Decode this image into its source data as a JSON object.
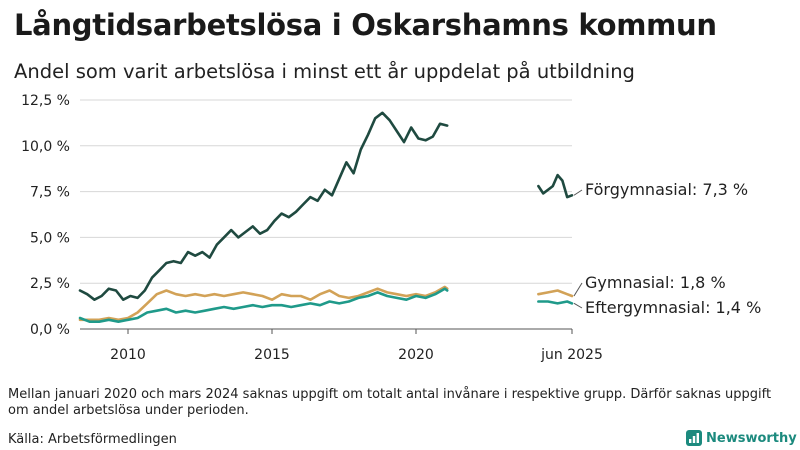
{
  "title": "Långtidsarbetslösa i Oskarshamns kommun",
  "subtitle": "Andel som varit arbetslösa i minst ett år uppdelat på utbildning",
  "note": "Mellan januari 2020 och mars 2024 saknas uppgift om totalt antal invånare i respektive grupp. Därför saknas uppgift om andel arbetslösa under perioden.",
  "source": "Källa: Arbetsförmedlingen",
  "brand": {
    "name": "Newsworthy",
    "icon": "newsworthy-logo-icon",
    "color": "#1c8a7e"
  },
  "chart_data": {
    "type": "line",
    "title": "Långtidsarbetslösa i Oskarshamns kommun",
    "subtitle": "Andel som varit arbetslösa i minst ett år uppdelat på utbildning",
    "xlabel": "",
    "ylabel": "",
    "x_range": [
      "2008-05",
      "2025-06"
    ],
    "ylim": [
      0,
      12.5
    ],
    "y_ticks": [
      0,
      2.5,
      5.0,
      7.5,
      10.0,
      12.5
    ],
    "y_tick_labels": [
      "0,0 %",
      "2,5 %",
      "5,0 %",
      "7,5 %",
      "10,0 %",
      "12,5 %"
    ],
    "x_ticks": [
      "2010-01",
      "2015-01",
      "2020-01",
      "2025-06"
    ],
    "x_tick_labels": [
      "2010",
      "2015",
      "2020",
      "jun 2025"
    ],
    "grid": "horizontal",
    "legend": "direct labels at right end",
    "series": [
      {
        "name": "Förgymnasial",
        "end_label": "Förgymnasial: 7,3 %",
        "color": "#1f4a40",
        "segments": [
          [
            [
              "2008-05",
              2.1
            ],
            [
              "2008-08",
              1.9
            ],
            [
              "2008-11",
              1.6
            ],
            [
              "2009-02",
              1.8
            ],
            [
              "2009-05",
              2.2
            ],
            [
              "2009-08",
              2.1
            ],
            [
              "2009-11",
              1.6
            ],
            [
              "2010-02",
              1.8
            ],
            [
              "2010-05",
              1.7
            ],
            [
              "2010-08",
              2.1
            ],
            [
              "2010-11",
              2.8
            ],
            [
              "2011-02",
              3.2
            ],
            [
              "2011-05",
              3.6
            ],
            [
              "2011-08",
              3.7
            ],
            [
              "2011-11",
              3.6
            ],
            [
              "2012-02",
              4.2
            ],
            [
              "2012-05",
              4.0
            ],
            [
              "2012-08",
              4.2
            ],
            [
              "2012-11",
              3.9
            ],
            [
              "2013-02",
              4.6
            ],
            [
              "2013-05",
              5.0
            ],
            [
              "2013-08",
              5.4
            ],
            [
              "2013-11",
              5.0
            ],
            [
              "2014-02",
              5.3
            ],
            [
              "2014-05",
              5.6
            ],
            [
              "2014-08",
              5.2
            ],
            [
              "2014-11",
              5.4
            ],
            [
              "2015-02",
              5.9
            ],
            [
              "2015-05",
              6.3
            ],
            [
              "2015-08",
              6.1
            ],
            [
              "2015-11",
              6.4
            ],
            [
              "2016-02",
              6.8
            ],
            [
              "2016-05",
              7.2
            ],
            [
              "2016-08",
              7.0
            ],
            [
              "2016-11",
              7.6
            ],
            [
              "2017-02",
              7.3
            ],
            [
              "2017-05",
              8.2
            ],
            [
              "2017-08",
              9.1
            ],
            [
              "2017-11",
              8.5
            ],
            [
              "2018-02",
              9.8
            ],
            [
              "2018-05",
              10.6
            ],
            [
              "2018-08",
              11.5
            ],
            [
              "2018-11",
              11.8
            ],
            [
              "2019-02",
              11.4
            ],
            [
              "2019-05",
              10.8
            ],
            [
              "2019-08",
              10.2
            ],
            [
              "2019-11",
              11.0
            ],
            [
              "2020-02",
              10.4
            ],
            [
              "2020-05",
              10.3
            ],
            [
              "2020-08",
              10.5
            ],
            [
              "2020-11",
              11.2
            ],
            [
              "2021-02",
              11.1
            ]
          ],
          [
            [
              "2024-04",
              7.8
            ],
            [
              "2024-06",
              7.4
            ],
            [
              "2024-08",
              7.6
            ],
            [
              "2024-10",
              7.8
            ],
            [
              "2024-12",
              8.4
            ],
            [
              "2025-02",
              8.1
            ],
            [
              "2025-04",
              7.2
            ],
            [
              "2025-06",
              7.3
            ]
          ]
        ]
      },
      {
        "name": "Gymnasial",
        "end_label": "Gymnasial: 1,8 %",
        "color": "#d2a257",
        "segments": [
          [
            [
              "2008-05",
              0.5
            ],
            [
              "2008-09",
              0.5
            ],
            [
              "2009-01",
              0.5
            ],
            [
              "2009-05",
              0.6
            ],
            [
              "2009-09",
              0.5
            ],
            [
              "2010-01",
              0.6
            ],
            [
              "2010-05",
              0.9
            ],
            [
              "2010-09",
              1.4
            ],
            [
              "2011-01",
              1.9
            ],
            [
              "2011-05",
              2.1
            ],
            [
              "2011-09",
              1.9
            ],
            [
              "2012-01",
              1.8
            ],
            [
              "2012-05",
              1.9
            ],
            [
              "2012-09",
              1.8
            ],
            [
              "2013-01",
              1.9
            ],
            [
              "2013-05",
              1.8
            ],
            [
              "2013-09",
              1.9
            ],
            [
              "2014-01",
              2.0
            ],
            [
              "2014-05",
              1.9
            ],
            [
              "2014-09",
              1.8
            ],
            [
              "2015-01",
              1.6
            ],
            [
              "2015-05",
              1.9
            ],
            [
              "2015-09",
              1.8
            ],
            [
              "2016-01",
              1.8
            ],
            [
              "2016-05",
              1.6
            ],
            [
              "2016-09",
              1.9
            ],
            [
              "2017-01",
              2.1
            ],
            [
              "2017-05",
              1.8
            ],
            [
              "2017-09",
              1.7
            ],
            [
              "2018-01",
              1.8
            ],
            [
              "2018-05",
              2.0
            ],
            [
              "2018-09",
              2.2
            ],
            [
              "2019-01",
              2.0
            ],
            [
              "2019-05",
              1.9
            ],
            [
              "2019-09",
              1.8
            ],
            [
              "2020-01",
              1.9
            ],
            [
              "2020-05",
              1.8
            ],
            [
              "2020-09",
              2.0
            ],
            [
              "2021-01",
              2.3
            ],
            [
              "2021-02",
              2.2
            ]
          ],
          [
            [
              "2024-04",
              1.9
            ],
            [
              "2024-08",
              2.0
            ],
            [
              "2024-12",
              2.1
            ],
            [
              "2025-04",
              1.9
            ],
            [
              "2025-06",
              1.8
            ]
          ]
        ]
      },
      {
        "name": "Eftergymnasial",
        "end_label": "Eftergymnasial: 1,4 %",
        "color": "#1f9a8a",
        "segments": [
          [
            [
              "2008-05",
              0.6
            ],
            [
              "2008-09",
              0.4
            ],
            [
              "2009-01",
              0.4
            ],
            [
              "2009-05",
              0.5
            ],
            [
              "2009-09",
              0.4
            ],
            [
              "2010-01",
              0.5
            ],
            [
              "2010-05",
              0.6
            ],
            [
              "2010-09",
              0.9
            ],
            [
              "2011-01",
              1.0
            ],
            [
              "2011-05",
              1.1
            ],
            [
              "2011-09",
              0.9
            ],
            [
              "2012-01",
              1.0
            ],
            [
              "2012-05",
              0.9
            ],
            [
              "2012-09",
              1.0
            ],
            [
              "2013-01",
              1.1
            ],
            [
              "2013-05",
              1.2
            ],
            [
              "2013-09",
              1.1
            ],
            [
              "2014-01",
              1.2
            ],
            [
              "2014-05",
              1.3
            ],
            [
              "2014-09",
              1.2
            ],
            [
              "2015-01",
              1.3
            ],
            [
              "2015-05",
              1.3
            ],
            [
              "2015-09",
              1.2
            ],
            [
              "2016-01",
              1.3
            ],
            [
              "2016-05",
              1.4
            ],
            [
              "2016-09",
              1.3
            ],
            [
              "2017-01",
              1.5
            ],
            [
              "2017-05",
              1.4
            ],
            [
              "2017-09",
              1.5
            ],
            [
              "2018-01",
              1.7
            ],
            [
              "2018-05",
              1.8
            ],
            [
              "2018-09",
              2.0
            ],
            [
              "2019-01",
              1.8
            ],
            [
              "2019-05",
              1.7
            ],
            [
              "2019-09",
              1.6
            ],
            [
              "2020-01",
              1.8
            ],
            [
              "2020-05",
              1.7
            ],
            [
              "2020-09",
              1.9
            ],
            [
              "2021-01",
              2.2
            ],
            [
              "2021-02",
              2.1
            ]
          ],
          [
            [
              "2024-04",
              1.5
            ],
            [
              "2024-08",
              1.5
            ],
            [
              "2024-12",
              1.4
            ],
            [
              "2025-04",
              1.5
            ],
            [
              "2025-06",
              1.4
            ]
          ]
        ]
      }
    ]
  }
}
